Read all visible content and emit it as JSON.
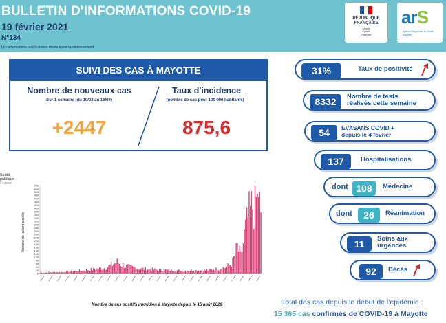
{
  "header": {
    "title": "BULLETIN D'INFORMATIONS COVID-19",
    "date": "19 février 2021",
    "number": "N°134",
    "note": "Les informations publiées sont mises à jour quotidiennement"
  },
  "logos": {
    "republique": [
      "RÉPUBLIQUE",
      "FRANÇAISE"
    ],
    "motto": [
      "Liberté",
      "Égalité",
      "Fraternité"
    ],
    "ars_word": "ar",
    "ars_s": "S",
    "ars_subtitle": "Agence Régionale de Santé Mayotte",
    "sante_publique": [
      "Santé",
      "publique",
      "France"
    ]
  },
  "panel": {
    "title": "SUIVI DES CAS À MAYOTTE",
    "new_cases_title": "Nombre de nouveaux cas",
    "new_cases_sub": "Sur 1 semaine (du 10/02 au 16/02)",
    "new_cases_value": "+2447",
    "incidence_title": "Taux d'incidence",
    "incidence_sub": "(nombre de cas pour 100 000 habitants) :",
    "incidence_value": "875,6"
  },
  "chart_caption": "Nombre de cas positifs quotidien à Mayotte depuis le 15 août 2020",
  "chart_data": {
    "type": "bar",
    "ylabel": "Nombre de patient positifs",
    "ylim": [
      0,
      540
    ],
    "yticks": [
      0,
      20,
      40,
      60,
      80,
      100,
      120,
      140,
      160,
      180,
      200,
      220,
      240,
      260,
      280,
      300,
      320,
      340,
      360,
      380,
      400,
      420,
      440,
      460,
      480,
      500,
      520,
      540
    ],
    "n_days": 188,
    "keypoints": [
      [
        0,
        6
      ],
      [
        20,
        10
      ],
      [
        35,
        18
      ],
      [
        55,
        35
      ],
      [
        65,
        70
      ],
      [
        72,
        45
      ],
      [
        85,
        30
      ],
      [
        100,
        22
      ],
      [
        120,
        18
      ],
      [
        140,
        20
      ],
      [
        150,
        28
      ],
      [
        158,
        40
      ],
      [
        163,
        70
      ],
      [
        167,
        160
      ],
      [
        170,
        100
      ],
      [
        173,
        230
      ],
      [
        176,
        330
      ],
      [
        179,
        390
      ],
      [
        182,
        470
      ],
      [
        184,
        430
      ],
      [
        185,
        520
      ],
      [
        187,
        300
      ]
    ],
    "color": "#d6457a"
  },
  "stats": [
    {
      "value": "31%",
      "label": "Taux de positivité"
    },
    {
      "value": "8332",
      "label": "Nombre de tests réalisés cette semaine"
    },
    {
      "value": "54",
      "label": "EVASANS COVID + depuis le 4 février"
    },
    {
      "value": "137",
      "label": "Hospitalisations"
    },
    {
      "prefix": "dont",
      "value": "108",
      "label": "Médecine"
    },
    {
      "prefix": "dont",
      "value": "26",
      "label": "Réanimation"
    },
    {
      "value": "11",
      "label": "Soins aux urgences"
    },
    {
      "value": "92",
      "label": "Décès"
    }
  ],
  "colors": {
    "header_bg": "#6ec1cf",
    "navy": "#1f5aa8",
    "teal": "#3fb4c4",
    "orange": "#f2a33c",
    "red": "#d42d2d",
    "bar": "#d6457a"
  },
  "totals": {
    "line1": "Total des cas depuis le début de l'épidémie :",
    "value": "15 365 cas",
    "line2_end": "confirmés de COVID-19 à Mayotte"
  }
}
